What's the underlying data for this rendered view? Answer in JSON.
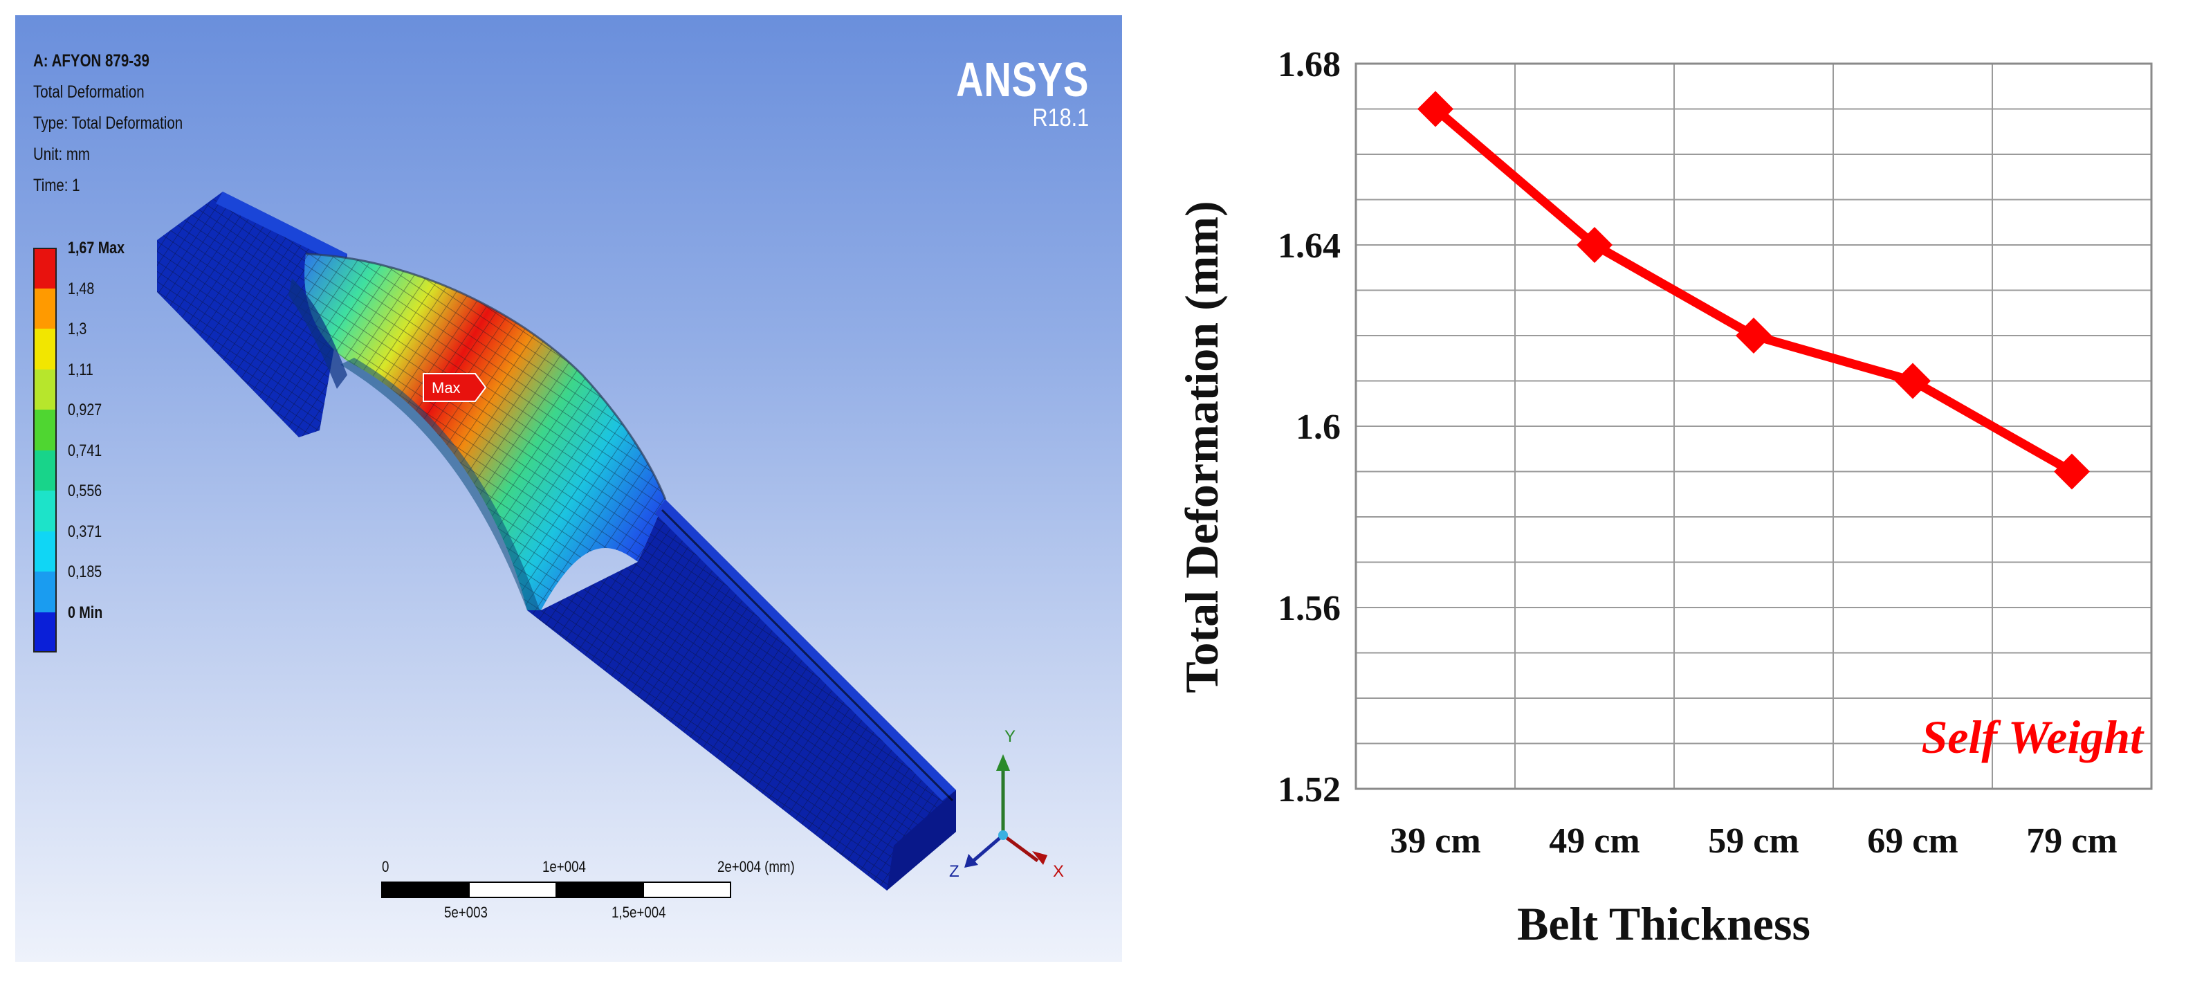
{
  "fea": {
    "title": "A: AFYON 879-39",
    "result": "Total Deformation",
    "type": "Type: Total Deformation",
    "unit": "Unit: mm",
    "time": "Time: 1",
    "software": "ANSYS",
    "version": "R18.1",
    "max_marker": "Max",
    "legend": [
      {
        "label": "1,67 Max",
        "color": "#e8120e"
      },
      {
        "label": "1,48",
        "color": "#ff9a00"
      },
      {
        "label": "1,3",
        "color": "#f2e600"
      },
      {
        "label": "1,11",
        "color": "#b7e62c"
      },
      {
        "label": "0,927",
        "color": "#4fd631"
      },
      {
        "label": "0,741",
        "color": "#18d48a"
      },
      {
        "label": "0,556",
        "color": "#1de3c9"
      },
      {
        "label": "0,371",
        "color": "#10d6f5"
      },
      {
        "label": "0,185",
        "color": "#1a9cf0"
      },
      {
        "label": "0 Min",
        "color": "#0a1fd8"
      }
    ],
    "scale_bar": {
      "top_labels": [
        "0",
        "1e+004",
        "2e+004 (mm)"
      ],
      "bottom_labels": [
        "5e+003",
        "1,5e+004"
      ]
    },
    "triad": {
      "y": "Y",
      "z": "Z",
      "x": "X"
    }
  },
  "chart_data": {
    "type": "line",
    "categories": [
      "39 cm",
      "49 cm",
      "59 cm",
      "69 cm",
      "79 cm"
    ],
    "series": [
      {
        "values": [
          1.67,
          1.64,
          1.62,
          1.61,
          1.59
        ],
        "color": "#ff0000",
        "marker": "diamond"
      }
    ],
    "xlabel": "Belt Thickness",
    "ylabel": "Total Deformation (mm)",
    "ylim": [
      1.52,
      1.68
    ],
    "yticks": [
      "1.52",
      "1.56",
      "1.6",
      "1.64",
      "1.68"
    ],
    "annotation": "Self Weight",
    "grid": true
  }
}
